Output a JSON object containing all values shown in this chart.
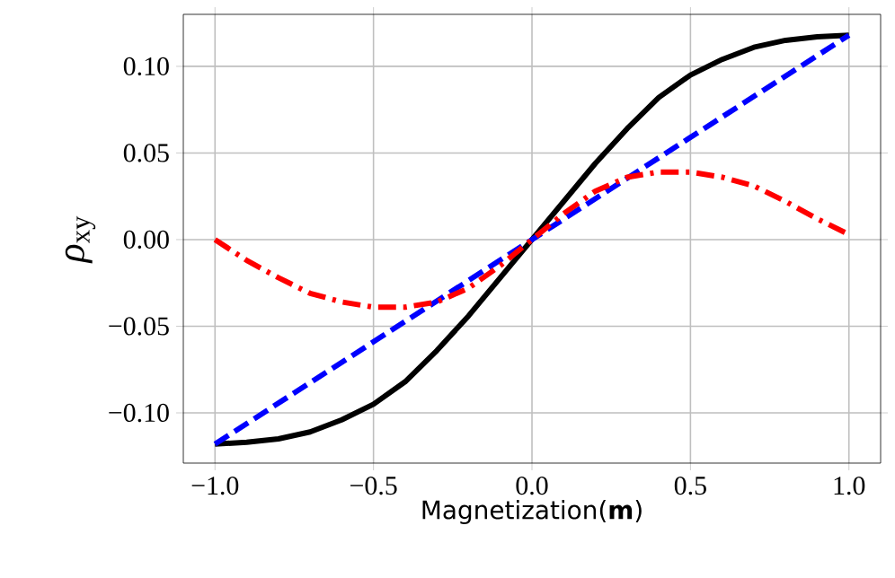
{
  "chart_data": {
    "type": "line",
    "xlabel": "Magnetization(**m**)",
    "ylabel": "*ρ*$_{xy}$",
    "xlim": [
      -1.1,
      1.1
    ],
    "ylim": [
      -0.129,
      0.13
    ],
    "xticks": [
      {
        "value": -1,
        "label": "−1.0"
      },
      {
        "value": -0.5,
        "label": "−0.5"
      },
      {
        "value": 0,
        "label": "0.0"
      },
      {
        "value": 0.5,
        "label": "0.5"
      },
      {
        "value": 1,
        "label": "1.0"
      }
    ],
    "yticks": [
      {
        "value": -0.1,
        "label": "−0.10"
      },
      {
        "value": -0.05,
        "label": "−0.05"
      },
      {
        "value": 0,
        "label": "0.00"
      },
      {
        "value": 0.05,
        "label": "0.05"
      },
      {
        "value": 0.1,
        "label": "0.10"
      }
    ],
    "grid": true,
    "marker": "none",
    "x": [
      -1,
      -0.9,
      -0.8,
      -0.7,
      -0.6,
      -0.5,
      -0.4,
      -0.3,
      -0.2,
      -0.1,
      0,
      0.1,
      0.2,
      0.3,
      0.4,
      0.5,
      0.6,
      0.7,
      0.8,
      0.9,
      1
    ],
    "series": [
      {
        "color": "#000000",
        "line_style": "solid",
        "values": [
          -0.118,
          -0.117,
          -0.115,
          -0.111,
          -0.104,
          -0.095,
          -0.082,
          -0.064,
          -0.044,
          -0.022,
          0,
          0.022,
          0.044,
          0.064,
          0.082,
          0.095,
          0.104,
          0.111,
          0.115,
          0.117,
          0.118
        ]
      },
      {
        "color": "#0000ff",
        "line_style": "dashed",
        "x": [
          -1,
          1
        ],
        "values": [
          -0.118,
          0.118
        ]
      },
      {
        "color": "#ff0000",
        "line_style": "dashdot",
        "values": [
          0,
          -0.012,
          -0.022,
          -0.031,
          -0.036,
          -0.039,
          -0.039,
          -0.036,
          -0.028,
          -0.015,
          0,
          0.015,
          0.028,
          0.036,
          0.039,
          0.039,
          0.036,
          0.031,
          0.022,
          0.012,
          0.003
        ]
      }
    ]
  }
}
